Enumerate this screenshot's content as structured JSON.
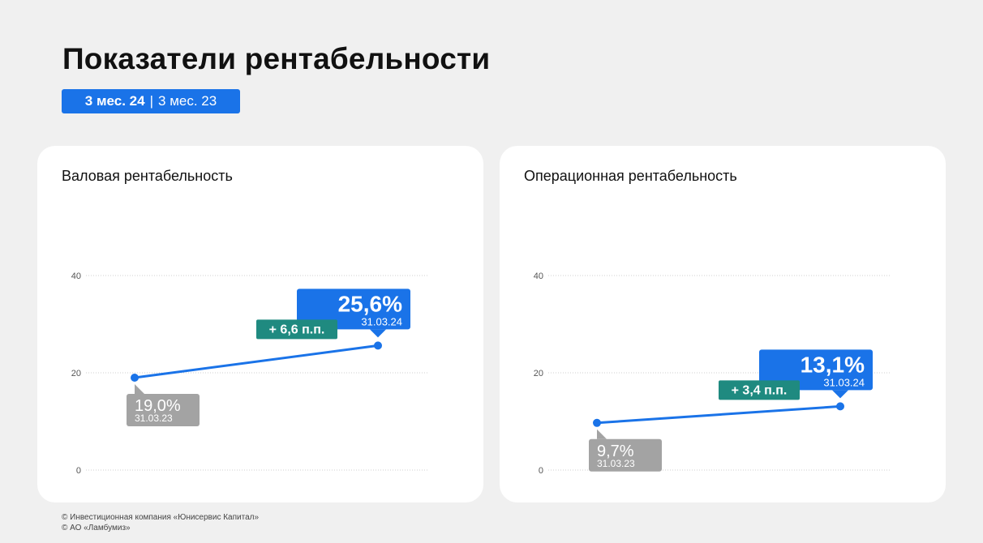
{
  "page_title": "Показатели рентабельности",
  "period_toggle": {
    "active": "3 мес. 24",
    "separator": "|",
    "inactive": "3 мес. 23"
  },
  "colors": {
    "accent": "#1a73e8",
    "current_bubble": "#1a73e8",
    "prior_bubble": "#a3a3a3",
    "delta_badge": "#1f8a80",
    "grid": "#cfcfcf",
    "tick": "#555555"
  },
  "footer": {
    "line1": "© Инвестиционная компания «Юнисервис Капитал»",
    "line2": "© АО «Ламбумиз»"
  },
  "chart_data": [
    {
      "type": "line",
      "title": "Валовая рентабельность",
      "ylim": [
        0,
        40
      ],
      "yticks": [
        "0",
        "20",
        "40"
      ],
      "grid": true,
      "x": [
        "31.03.23",
        "31.03.24"
      ],
      "values": [
        19.0,
        25.6
      ],
      "labels": [
        "19,0%",
        "25,6%"
      ],
      "dates": [
        "31.03.23",
        "31.03.24"
      ],
      "delta": "+ 6,6 п.п."
    },
    {
      "type": "line",
      "title": "Операционная рентабельность",
      "ylim": [
        0,
        40
      ],
      "yticks": [
        "0",
        "20",
        "40"
      ],
      "grid": true,
      "x": [
        "31.03.23",
        "31.03.24"
      ],
      "values": [
        9.7,
        13.1
      ],
      "labels": [
        "9,7%",
        "13,1%"
      ],
      "dates": [
        "31.03.23",
        "31.03.24"
      ],
      "delta": "+ 3,4 п.п."
    }
  ]
}
